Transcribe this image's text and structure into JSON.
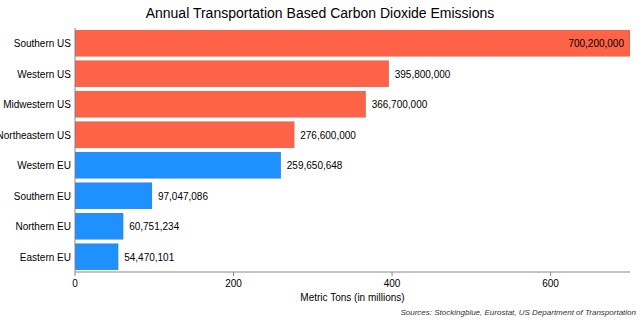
{
  "chart_data": {
    "type": "bar",
    "orientation": "horizontal",
    "title": "Annual Transportation Based Carbon Dioxide Emissions",
    "x_label": "Metric Tons (in millions)",
    "annotations": [
      "Sources: Stockingblue, Eurostat, US Department of Transportation"
    ],
    "categories": [
      "Southern US",
      "Western US",
      "Midwestern US",
      "Northeastern US",
      "Western EU",
      "Southern EU",
      "Northern EU",
      "Eastern EU"
    ],
    "values": [
      700.2,
      395.8,
      366.7,
      276.6,
      259.650648,
      97.047086,
      60.751234,
      54.470101
    ],
    "value_labels": [
      "700,200,000",
      "395,800,000",
      "366,700,000",
      "276,600,000",
      "259,650,648",
      "97,047,086",
      "60,751,234",
      "54,470,101"
    ],
    "colors": [
      "#ff6347",
      "#ff6347",
      "#ff6347",
      "#ff6347",
      "#1e90ff",
      "#1e90ff",
      "#1e90ff",
      "#1e90ff"
    ],
    "xlim": [
      0,
      700.2
    ],
    "xticks": [
      0,
      200,
      400,
      600
    ],
    "grid": false,
    "data_labels": true
  }
}
